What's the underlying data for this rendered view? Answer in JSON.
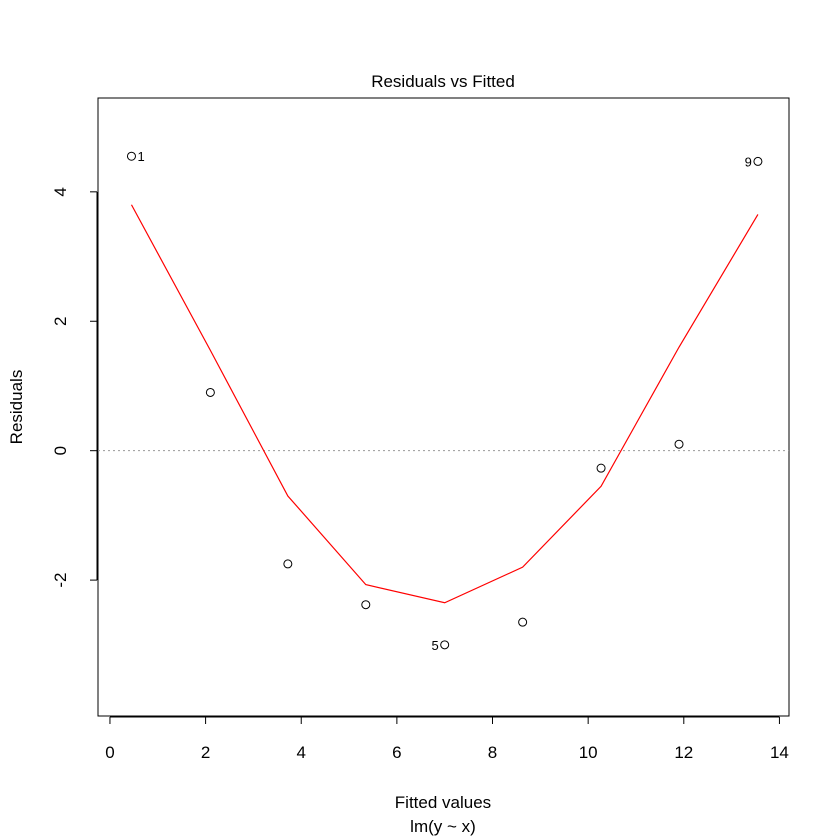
{
  "chart_data": {
    "type": "scatter",
    "title": "Residuals vs Fitted",
    "xlabel": "Fitted values",
    "ylabel": "Residuals",
    "subtitle": "lm(y ~ x)",
    "xlim": [
      -0.25,
      14.2
    ],
    "ylim": [
      -4.1,
      5.45
    ],
    "xticks": [
      0,
      2,
      4,
      6,
      8,
      10,
      12,
      14
    ],
    "yticks": [
      -2,
      0,
      2,
      4
    ],
    "grid": false,
    "reference_line": {
      "y": 0,
      "color": "#999999",
      "style": "dotted"
    },
    "points": [
      {
        "x": 0.45,
        "y": 4.55,
        "label": "1"
      },
      {
        "x": 2.1,
        "y": 0.9,
        "label": ""
      },
      {
        "x": 3.72,
        "y": -1.75,
        "label": ""
      },
      {
        "x": 5.35,
        "y": -2.38,
        "label": ""
      },
      {
        "x": 7.0,
        "y": -3.0,
        "label": "5"
      },
      {
        "x": 8.63,
        "y": -2.65,
        "label": ""
      },
      {
        "x": 10.27,
        "y": -0.27,
        "label": ""
      },
      {
        "x": 11.9,
        "y": 0.1,
        "label": ""
      },
      {
        "x": 13.55,
        "y": 4.47,
        "label": "9"
      }
    ],
    "smooth_line": {
      "color": "#ff0000",
      "x": [
        0.45,
        2.1,
        3.72,
        5.35,
        7.0,
        8.63,
        10.27,
        11.9,
        13.55
      ],
      "y": [
        3.8,
        1.55,
        -0.7,
        -2.07,
        -2.35,
        -1.8,
        -0.55,
        1.6,
        3.65
      ]
    }
  }
}
